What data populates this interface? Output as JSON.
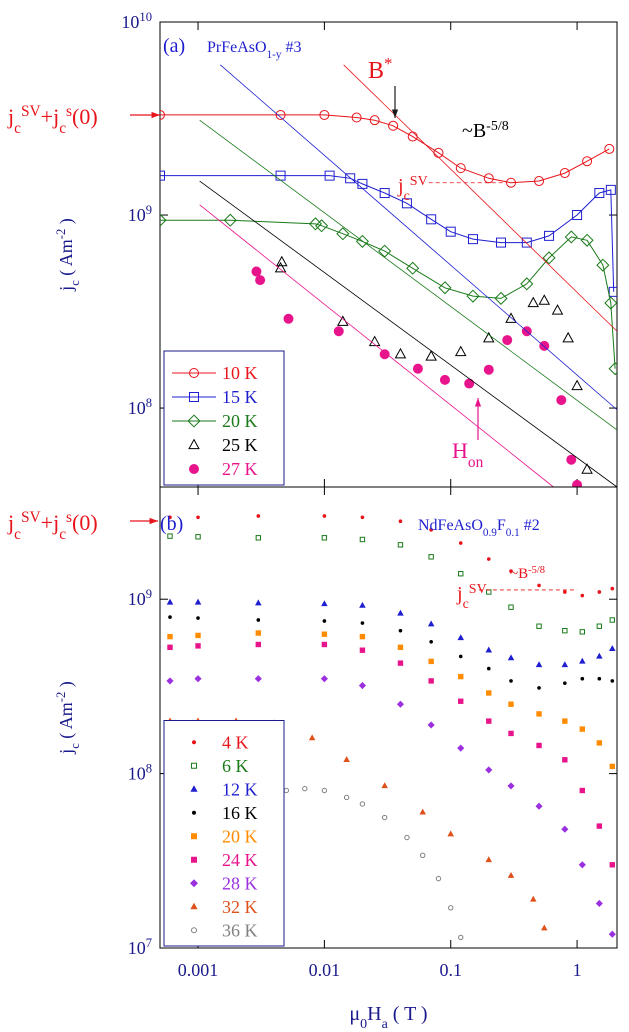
{
  "chart_data": [
    {
      "type": "scatter",
      "log_x": true,
      "log_y": true,
      "legend": "lower left",
      "grid": false,
      "xlim": [
        0.0005,
        2.07
      ],
      "ylim": [
        39000000,
        10000000000
      ],
      "xticks": [
        0.001,
        0.01,
        0.1,
        1
      ],
      "yticks": [
        {
          "value": 100000000,
          "label": [
            {
              "text": "10"
            },
            {
              "text": "8",
              "pos": "sup"
            }
          ]
        },
        {
          "value": 1000000000,
          "label": [
            {
              "text": "10"
            },
            {
              "text": "9",
              "pos": "sup"
            }
          ]
        },
        {
          "value": 10000000000,
          "label": [
            {
              "text": "10"
            },
            {
              "text": "10",
              "pos": "sup"
            }
          ]
        }
      ],
      "y_label": [
        {
          "text": "j"
        },
        {
          "text": "c",
          "pos": "sub"
        },
        {
          "text": " ( Am"
        },
        {
          "text": "-2",
          "pos": "sup"
        },
        {
          "text": " )"
        }
      ],
      "annotations": [
        {
          "color": "#1f1fd0",
          "parts": [
            {
              "text": "(a)"
            }
          ]
        },
        {
          "color": "#1f1fd0",
          "parts": [
            {
              "text": "PrFeAsO"
            },
            {
              "text": "1-y",
              "pos": "sub"
            },
            {
              "text": " #3"
            }
          ]
        },
        {
          "color": "#e8141b",
          "parts": [
            {
              "text": "B"
            },
            {
              "text": "*",
              "pos": "sup"
            }
          ]
        },
        {
          "color": "#000000",
          "parts": [
            {
              "text": "~B"
            },
            {
              "text": "-5/8",
              "pos": "sup"
            }
          ]
        },
        {
          "color": "#e8141b",
          "parts": [
            {
              "text": "j"
            },
            {
              "text": "c",
              "pos": "sub"
            },
            {
              "text": "SV",
              "pos": "sup"
            }
          ]
        },
        {
          "color": "#e8148c",
          "parts": [
            {
              "text": "H"
            },
            {
              "text": "on",
              "pos": "sub"
            }
          ]
        },
        {
          "color": "#e8141b",
          "parts": [
            {
              "text": "j"
            },
            {
              "text": "c",
              "pos": "sub"
            },
            {
              "text": "SV",
              "pos": "sup"
            },
            {
              "text": "+j"
            },
            {
              "text": "c",
              "pos": "sub"
            },
            {
              "text": "s",
              "pos": "sup"
            },
            {
              "text": "(0)"
            }
          ]
        }
      ],
      "guide_lines": [
        {
          "color": "#e8141b",
          "x": [
            0.0142,
            2.07
          ],
          "values": [
            6000000000,
            250000000
          ]
        },
        {
          "color": "#1f1fd0",
          "x": [
            0.0015,
            2.07
          ],
          "values": [
            6000000000,
            98000000
          ]
        },
        {
          "color": "#1a7a1a",
          "x": [
            0.00103,
            2.07
          ],
          "values": [
            3100000000,
            77000000
          ]
        },
        {
          "color": "#000000",
          "x": [
            0.00103,
            2.07
          ],
          "values": [
            1500000000,
            39000000
          ]
        },
        {
          "color": "#e8148c",
          "x": [
            0.00103,
            0.65
          ],
          "values": [
            1130000000,
            39000000
          ]
        },
        {
          "color": "#e8141b",
          "dashed": true,
          "x": [
            0.067,
            0.26
          ],
          "values": [
            1470000000,
            1470000000
          ]
        }
      ],
      "series": [
        {
          "name": "10 K",
          "color": "#e8141b",
          "marker": "circle-open",
          "line": true,
          "x": [
            0.0005,
            0.0045,
            0.01,
            0.018,
            0.025,
            0.035,
            0.05,
            0.08,
            0.12,
            0.2,
            0.3,
            0.5,
            0.8,
            1.2,
            1.8
          ],
          "values": [
            3300000000,
            3300000000,
            3300000000,
            3200000000,
            3100000000,
            2900000000,
            2550000000,
            2100000000,
            1750000000,
            1550000000,
            1470000000,
            1500000000,
            1650000000,
            1900000000,
            2200000000
          ]
        },
        {
          "name": "15 K",
          "color": "#1f1fd0",
          "marker": "square-open",
          "line": true,
          "x": [
            0.0005,
            0.0045,
            0.011,
            0.016,
            0.02,
            0.03,
            0.045,
            0.07,
            0.1,
            0.15,
            0.25,
            0.4,
            0.6,
            1.0,
            1.5,
            1.85,
            1.95
          ],
          "values": [
            1600000000,
            1600000000,
            1600000000,
            1550000000,
            1450000000,
            1300000000,
            1150000000,
            950000000,
            820000000,
            750000000,
            720000000,
            720000000,
            780000000,
            1000000000,
            1300000000,
            1350000000,
            400000000
          ]
        },
        {
          "name": "20 K",
          "color": "#1a7a1a",
          "marker": "diamond-open",
          "line": true,
          "x": [
            0.0005,
            0.0018,
            0.0085,
            0.0095,
            0.014,
            0.02,
            0.03,
            0.05,
            0.09,
            0.15,
            0.25,
            0.4,
            0.6,
            0.9,
            1.2,
            1.6,
            1.85,
            2.0
          ],
          "values": [
            940000000,
            940000000,
            900000000,
            880000000,
            800000000,
            730000000,
            650000000,
            530000000,
            420000000,
            380000000,
            370000000,
            440000000,
            600000000,
            770000000,
            740000000,
            550000000,
            350000000,
            160000000
          ]
        },
        {
          "name": "25 K",
          "color": "#000000",
          "marker": "triangle-open",
          "line": false,
          "x": [
            0.0045,
            0.0046,
            0.014,
            0.025,
            0.04,
            0.07,
            0.12,
            0.2,
            0.3,
            0.45,
            0.55,
            0.7,
            0.85,
            1.0,
            1.2
          ],
          "values": [
            530000000,
            570000000,
            280000000,
            220000000,
            190000000,
            185000000,
            195000000,
            230000000,
            290000000,
            350000000,
            360000000,
            320000000,
            230000000,
            130000000,
            48000000
          ]
        },
        {
          "name": "27 K",
          "color": "#e8148c",
          "marker": "circle-filled",
          "line": false,
          "x": [
            0.0029,
            0.0031,
            0.0052,
            0.013,
            0.03,
            0.055,
            0.09,
            0.14,
            0.2,
            0.28,
            0.4,
            0.55,
            0.75,
            0.9,
            1.0
          ],
          "values": [
            510000000,
            460000000,
            290000000,
            250000000,
            190000000,
            160000000,
            140000000,
            134000000,
            158000000,
            225000000,
            250000000,
            210000000,
            110000000,
            54000000,
            40000000
          ]
        }
      ]
    },
    {
      "type": "scatter",
      "log_x": true,
      "log_y": true,
      "legend": "lower left",
      "grid": false,
      "xlim": [
        0.0005,
        2.07
      ],
      "ylim": [
        10000000,
        4400000000
      ],
      "xticks": [
        0.001,
        0.01,
        0.1,
        1
      ],
      "yticks": [
        {
          "value": 10000000,
          "label": [
            {
              "text": "10"
            },
            {
              "text": "7",
              "pos": "sup"
            }
          ]
        },
        {
          "value": 100000000,
          "label": [
            {
              "text": "10"
            },
            {
              "text": "8",
              "pos": "sup"
            }
          ]
        },
        {
          "value": 1000000000,
          "label": [
            {
              "text": "10"
            },
            {
              "text": "9",
              "pos": "sup"
            }
          ]
        }
      ],
      "y_label": [
        {
          "text": "j"
        },
        {
          "text": "c",
          "pos": "sub"
        },
        {
          "text": " ( Am"
        },
        {
          "text": "-2",
          "pos": "sup"
        },
        {
          "text": " )"
        }
      ],
      "x_label": [
        {
          "text": "μ"
        },
        {
          "text": "0",
          "pos": "sub"
        },
        {
          "text": "H"
        },
        {
          "text": "a",
          "pos": "sub"
        },
        {
          "text": " ( T )"
        }
      ],
      "annotations": [
        {
          "color": "#1f1fd0",
          "parts": [
            {
              "text": "(b)"
            }
          ]
        },
        {
          "color": "#1f1fd0",
          "parts": [
            {
              "text": "NdFeAsO"
            },
            {
              "text": "0.9",
              "pos": "sub"
            },
            {
              "text": "F"
            },
            {
              "text": "0.1",
              "pos": "sub"
            },
            {
              "text": " #2"
            }
          ]
        },
        {
          "color": "#e8141b",
          "parts": [
            {
              "text": "j"
            },
            {
              "text": "c",
              "pos": "sub"
            },
            {
              "text": "SV",
              "pos": "sup"
            },
            {
              "text": "+j"
            },
            {
              "text": "c",
              "pos": "sub"
            },
            {
              "text": "s",
              "pos": "sup"
            },
            {
              "text": "(0)"
            }
          ]
        },
        {
          "color": "#e8141b",
          "parts": [
            {
              "text": "~B"
            },
            {
              "text": "-5/8",
              "pos": "sup"
            }
          ]
        },
        {
          "color": "#e8141b",
          "parts": [
            {
              "text": "j"
            },
            {
              "text": "c",
              "pos": "sub"
            },
            {
              "text": "SV",
              "pos": "sup"
            }
          ]
        }
      ],
      "guide_lines": [
        {
          "color": "#e8141b",
          "dashed": true,
          "x": [
            0.167,
            1.0
          ],
          "values": [
            1130000000,
            1130000000
          ]
        }
      ],
      "series": [
        {
          "name": "4 K",
          "color": "#e8141b",
          "marker": "dot",
          "line": false,
          "x": [
            0.0006,
            0.001,
            0.003,
            0.01,
            0.02,
            0.04,
            0.07,
            0.12,
            0.2,
            0.3,
            0.5,
            0.8,
            1.1,
            1.5,
            1.9
          ],
          "values": [
            2950000000,
            2950000000,
            3000000000,
            3000000000,
            2950000000,
            2800000000,
            2500000000,
            2100000000,
            1700000000,
            1450000000,
            1200000000,
            1100000000,
            1050000000,
            1100000000,
            1150000000
          ]
        },
        {
          "name": "6 K",
          "color": "#1a7a1a",
          "marker": "square-open",
          "line": false,
          "x": [
            0.0006,
            0.001,
            0.003,
            0.01,
            0.02,
            0.04,
            0.07,
            0.12,
            0.2,
            0.3,
            0.5,
            0.8,
            1.1,
            1.5,
            1.9
          ],
          "values": [
            2300000000,
            2280000000,
            2250000000,
            2250000000,
            2200000000,
            2050000000,
            1750000000,
            1400000000,
            1100000000,
            900000000,
            700000000,
            660000000,
            650000000,
            700000000,
            760000000
          ]
        },
        {
          "name": "12 K",
          "color": "#1f1fd0",
          "marker": "triangle-filled",
          "line": false,
          "x": [
            0.0006,
            0.001,
            0.003,
            0.01,
            0.02,
            0.04,
            0.07,
            0.12,
            0.2,
            0.3,
            0.5,
            0.8,
            1.1,
            1.5,
            1.9
          ],
          "values": [
            960000000,
            960000000,
            950000000,
            940000000,
            920000000,
            830000000,
            720000000,
            600000000,
            510000000,
            460000000,
            420000000,
            420000000,
            440000000,
            470000000,
            520000000
          ]
        },
        {
          "name": "16 K",
          "color": "#000000",
          "marker": "dot",
          "line": false,
          "x": [
            0.0006,
            0.001,
            0.003,
            0.01,
            0.02,
            0.04,
            0.07,
            0.12,
            0.2,
            0.3,
            0.5,
            0.8,
            1.1,
            1.5,
            1.9
          ],
          "values": [
            790000000,
            780000000,
            760000000,
            750000000,
            730000000,
            660000000,
            570000000,
            470000000,
            400000000,
            340000000,
            310000000,
            330000000,
            350000000,
            350000000,
            340000000
          ]
        },
        {
          "name": "20 K",
          "color": "#ff8c00",
          "marker": "square-filled",
          "line": false,
          "x": [
            0.0006,
            0.001,
            0.003,
            0.01,
            0.02,
            0.04,
            0.07,
            0.12,
            0.2,
            0.3,
            0.5,
            0.8,
            1.1,
            1.5,
            1.9
          ],
          "values": [
            610000000,
            620000000,
            640000000,
            630000000,
            610000000,
            530000000,
            440000000,
            360000000,
            290000000,
            250000000,
            220000000,
            200000000,
            180000000,
            150000000,
            110000000
          ]
        },
        {
          "name": "24 K",
          "color": "#e8148c",
          "marker": "square-filled",
          "line": false,
          "x": [
            0.0006,
            0.001,
            0.003,
            0.01,
            0.02,
            0.04,
            0.07,
            0.12,
            0.2,
            0.3,
            0.5,
            0.8,
            1.1,
            1.5,
            1.9
          ],
          "values": [
            530000000,
            540000000,
            550000000,
            550000000,
            510000000,
            430000000,
            340000000,
            260000000,
            200000000,
            170000000,
            145000000,
            120000000,
            80000000,
            50000000,
            30000000
          ]
        },
        {
          "name": "28 K",
          "color": "#9b30e0",
          "marker": "diamond-filled",
          "line": false,
          "x": [
            0.0006,
            0.001,
            0.003,
            0.01,
            0.02,
            0.04,
            0.07,
            0.12,
            0.2,
            0.3,
            0.5,
            0.8,
            1.1,
            1.5,
            1.9
          ],
          "values": [
            340000000,
            350000000,
            350000000,
            350000000,
            320000000,
            250000000,
            190000000,
            140000000,
            105000000,
            85000000,
            65000000,
            48000000,
            30000000,
            18000000,
            12000000
          ]
        },
        {
          "name": "32 K",
          "color": "#e0501a",
          "marker": "triangle-filled",
          "line": false,
          "x": [
            0.0006,
            0.001,
            0.002,
            0.004,
            0.008,
            0.015,
            0.03,
            0.06,
            0.1,
            0.2,
            0.3,
            0.45,
            0.55
          ],
          "values": [
            200000000,
            200000000,
            200000000,
            195000000,
            160000000,
            120000000,
            85000000,
            60000000,
            45000000,
            32000000,
            26000000,
            19000000,
            13000000
          ]
        },
        {
          "name": "36 K",
          "color": "#808080",
          "marker": "circle-open",
          "line": false,
          "x": [
            0.0035,
            0.005,
            0.007,
            0.01,
            0.015,
            0.02,
            0.03,
            0.045,
            0.06,
            0.08,
            0.1,
            0.12
          ],
          "values": [
            75000000,
            80000000,
            82000000,
            80000000,
            73000000,
            67000000,
            56000000,
            43000000,
            34000000,
            25000000,
            17000000,
            11500000
          ]
        }
      ]
    }
  ]
}
